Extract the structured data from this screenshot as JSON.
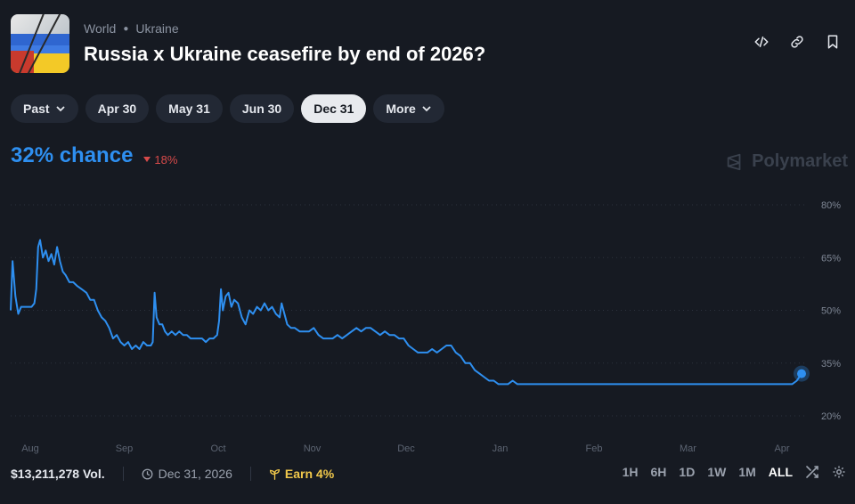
{
  "header": {
    "category": "World",
    "subcategory": "Ukraine",
    "title": "Russia x Ukraine ceasefire by end of 2026?",
    "thumbnail": "ukraine-russia-flag-image"
  },
  "actions": [
    {
      "name": "embed-icon"
    },
    {
      "name": "link-icon"
    },
    {
      "name": "bookmark-icon"
    }
  ],
  "chips": {
    "past": "Past",
    "apr30": "Apr 30",
    "may31": "May 31",
    "jun30": "Jun 30",
    "dec31": "Dec 31",
    "more": "More",
    "selected": "Dec 31"
  },
  "stats": {
    "chance": "32% chance",
    "delta": "18%",
    "delta_color": "#d64a4a",
    "accent_color": "#2e8ff0"
  },
  "brand": {
    "name": "Polymarket"
  },
  "footer": {
    "volume": "$13,211,278 Vol.",
    "end_date": "Dec 31, 2026",
    "earn": "Earn 4%"
  },
  "ranges": {
    "h1": "1H",
    "h6": "6H",
    "d1": "1D",
    "w1": "1W",
    "m1": "1M",
    "all": "ALL",
    "selected": "ALL"
  },
  "chart_data": {
    "type": "line",
    "x_ticks": [
      "Aug",
      "Sep",
      "Oct",
      "Nov",
      "Dec",
      "Jan",
      "Feb",
      "Mar",
      "Apr"
    ],
    "y_ticks": [
      "80%",
      "65%",
      "50%",
      "35%",
      "20%"
    ],
    "ylim": [
      20,
      80
    ],
    "grid": true,
    "series": [
      {
        "color": "#2e8ff0",
        "points": [
          [
            0.0,
            50
          ],
          [
            0.02,
            64
          ],
          [
            0.05,
            54
          ],
          [
            0.08,
            49
          ],
          [
            0.11,
            51
          ],
          [
            0.16,
            51
          ],
          [
            0.19,
            51
          ],
          [
            0.22,
            51
          ],
          [
            0.25,
            52
          ],
          [
            0.27,
            56
          ],
          [
            0.29,
            68
          ],
          [
            0.31,
            70
          ],
          [
            0.34,
            65
          ],
          [
            0.37,
            67
          ],
          [
            0.4,
            64
          ],
          [
            0.43,
            66
          ],
          [
            0.46,
            63
          ],
          [
            0.49,
            68
          ],
          [
            0.52,
            64
          ],
          [
            0.55,
            61
          ],
          [
            0.58,
            60
          ],
          [
            0.62,
            58
          ],
          [
            0.66,
            58
          ],
          [
            0.7,
            57
          ],
          [
            0.75,
            56
          ],
          [
            0.8,
            55
          ],
          [
            0.84,
            53
          ],
          [
            0.88,
            53
          ],
          [
            0.92,
            50
          ],
          [
            0.96,
            48
          ],
          [
            1.0,
            47
          ],
          [
            1.04,
            45
          ],
          [
            1.08,
            42
          ],
          [
            1.12,
            43
          ],
          [
            1.16,
            41
          ],
          [
            1.2,
            40
          ],
          [
            1.24,
            41
          ],
          [
            1.28,
            39
          ],
          [
            1.32,
            40
          ],
          [
            1.36,
            39
          ],
          [
            1.4,
            41
          ],
          [
            1.44,
            40
          ],
          [
            1.48,
            40
          ],
          [
            1.5,
            41
          ],
          [
            1.52,
            55
          ],
          [
            1.54,
            48
          ],
          [
            1.57,
            46
          ],
          [
            1.6,
            46
          ],
          [
            1.63,
            44
          ],
          [
            1.66,
            43
          ],
          [
            1.7,
            44
          ],
          [
            1.74,
            43
          ],
          [
            1.78,
            44
          ],
          [
            1.82,
            43
          ],
          [
            1.86,
            43
          ],
          [
            1.9,
            42
          ],
          [
            1.94,
            42
          ],
          [
            1.98,
            42
          ],
          [
            2.02,
            42
          ],
          [
            2.06,
            41
          ],
          [
            2.1,
            42
          ],
          [
            2.14,
            42
          ],
          [
            2.18,
            43
          ],
          [
            2.2,
            47
          ],
          [
            2.22,
            56
          ],
          [
            2.24,
            50
          ],
          [
            2.27,
            54
          ],
          [
            2.3,
            55
          ],
          [
            2.33,
            51
          ],
          [
            2.36,
            53
          ],
          [
            2.4,
            52
          ],
          [
            2.44,
            48
          ],
          [
            2.48,
            46
          ],
          [
            2.52,
            50
          ],
          [
            2.56,
            49
          ],
          [
            2.6,
            51
          ],
          [
            2.64,
            50
          ],
          [
            2.68,
            52
          ],
          [
            2.72,
            50
          ],
          [
            2.76,
            51
          ],
          [
            2.8,
            49
          ],
          [
            2.84,
            48
          ],
          [
            2.86,
            52
          ],
          [
            2.88,
            50
          ],
          [
            2.92,
            46
          ],
          [
            2.96,
            45
          ],
          [
            3.0,
            45
          ],
          [
            3.05,
            44
          ],
          [
            3.1,
            44
          ],
          [
            3.15,
            44
          ],
          [
            3.2,
            45
          ],
          [
            3.25,
            43
          ],
          [
            3.3,
            42
          ],
          [
            3.35,
            42
          ],
          [
            3.4,
            42
          ],
          [
            3.45,
            43
          ],
          [
            3.5,
            42
          ],
          [
            3.55,
            43
          ],
          [
            3.6,
            44
          ],
          [
            3.65,
            45
          ],
          [
            3.7,
            44
          ],
          [
            3.75,
            45
          ],
          [
            3.8,
            45
          ],
          [
            3.85,
            44
          ],
          [
            3.9,
            43
          ],
          [
            3.95,
            44
          ],
          [
            4.0,
            43
          ],
          [
            4.05,
            43
          ],
          [
            4.1,
            42
          ],
          [
            4.15,
            42
          ],
          [
            4.2,
            40
          ],
          [
            4.25,
            39
          ],
          [
            4.3,
            38
          ],
          [
            4.35,
            38
          ],
          [
            4.4,
            38
          ],
          [
            4.45,
            39
          ],
          [
            4.5,
            38
          ],
          [
            4.55,
            39
          ],
          [
            4.6,
            40
          ],
          [
            4.65,
            40
          ],
          [
            4.7,
            38
          ],
          [
            4.75,
            37
          ],
          [
            4.8,
            35
          ],
          [
            4.85,
            35
          ],
          [
            4.9,
            33
          ],
          [
            4.95,
            32
          ],
          [
            5.0,
            31
          ],
          [
            5.05,
            30
          ],
          [
            5.1,
            30
          ],
          [
            5.15,
            29
          ],
          [
            5.2,
            29
          ],
          [
            5.25,
            29
          ],
          [
            5.3,
            30
          ],
          [
            5.35,
            29
          ],
          [
            5.4,
            29
          ],
          [
            5.45,
            29
          ],
          [
            5.5,
            29
          ],
          [
            5.55,
            29
          ],
          [
            5.6,
            29
          ],
          [
            5.65,
            29
          ],
          [
            5.7,
            29
          ],
          [
            5.75,
            29
          ],
          [
            5.8,
            29
          ],
          [
            5.85,
            29
          ],
          [
            5.9,
            29
          ],
          [
            5.95,
            29
          ],
          [
            6.0,
            29
          ],
          [
            6.05,
            29
          ],
          [
            6.1,
            29
          ],
          [
            6.15,
            29
          ],
          [
            6.2,
            29
          ],
          [
            6.25,
            29
          ],
          [
            6.3,
            29
          ],
          [
            6.35,
            29
          ],
          [
            6.4,
            29
          ],
          [
            6.45,
            29
          ],
          [
            6.5,
            29
          ],
          [
            6.55,
            29
          ],
          [
            6.6,
            29
          ],
          [
            6.65,
            29
          ],
          [
            6.7,
            29
          ],
          [
            6.75,
            29
          ],
          [
            6.8,
            29
          ],
          [
            6.85,
            29
          ],
          [
            6.9,
            29
          ],
          [
            6.95,
            29
          ],
          [
            7.0,
            29
          ],
          [
            7.05,
            29
          ],
          [
            7.1,
            29
          ],
          [
            7.15,
            29
          ],
          [
            7.2,
            29
          ],
          [
            7.25,
            29
          ],
          [
            7.3,
            29
          ],
          [
            7.35,
            29
          ],
          [
            7.4,
            29
          ],
          [
            7.45,
            29
          ],
          [
            7.5,
            29
          ],
          [
            7.55,
            29
          ],
          [
            7.6,
            29
          ],
          [
            7.65,
            29
          ],
          [
            7.7,
            29
          ],
          [
            7.75,
            29
          ],
          [
            7.8,
            29
          ],
          [
            7.85,
            29
          ],
          [
            7.9,
            29
          ],
          [
            7.95,
            29
          ],
          [
            8.0,
            29
          ],
          [
            8.05,
            29
          ],
          [
            8.1,
            29
          ],
          [
            8.15,
            29
          ],
          [
            8.2,
            29
          ],
          [
            8.25,
            29
          ],
          [
            8.3,
            30
          ],
          [
            8.35,
            32
          ]
        ]
      }
    ]
  }
}
